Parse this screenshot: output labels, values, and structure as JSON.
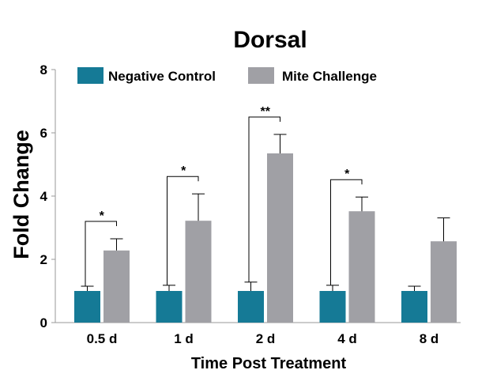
{
  "chart_data": {
    "type": "bar",
    "title": "Dorsal",
    "xlabel": "Time Post Treatment",
    "ylabel": "Fold Change",
    "ylim": [
      0,
      8
    ],
    "yticks": [
      "0",
      "2",
      "4",
      "6",
      "8"
    ],
    "categories": [
      "0.5 d",
      "1 d",
      "2 d",
      "4 d",
      "8 d"
    ],
    "series": [
      {
        "name": "Negative Control",
        "values": [
          1.0,
          1.0,
          1.0,
          1.0,
          1.0
        ],
        "errors": [
          0.15,
          0.18,
          0.28,
          0.18,
          0.15
        ],
        "color": "#157a96"
      },
      {
        "name": "Mite Challenge",
        "values": [
          2.28,
          3.22,
          5.35,
          3.52,
          2.57
        ],
        "errors": [
          0.37,
          0.85,
          0.6,
          0.45,
          0.74
        ],
        "color": "#a0a0a5"
      }
    ],
    "significance": [
      "*",
      "*",
      "**",
      "*",
      ""
    ],
    "legend_position": "top",
    "grid": false
  }
}
